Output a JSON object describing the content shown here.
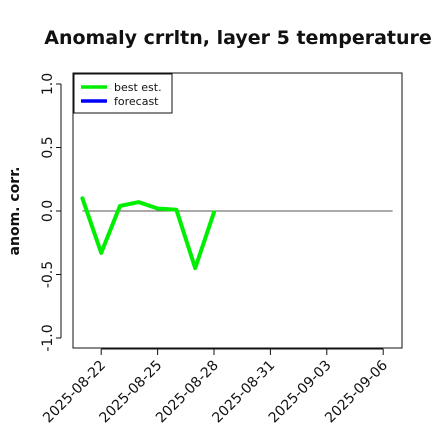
{
  "chart_data": {
    "type": "line",
    "title": "Anomaly crrltn, layer 5 temperature",
    "ylabel": "anom. corr.",
    "xlabel": "",
    "ylim": [
      -1.0,
      1.0
    ],
    "xlim": [
      "2025-08-20T12:00",
      "2025-09-07T00:00"
    ],
    "y_ticks": [
      "-1.0",
      "-0.5",
      "0.0",
      "0.5",
      "1.0"
    ],
    "x_ticks": [
      {
        "label": "2025-08-22",
        "value": "2025-08-22",
        "color": "#111111"
      },
      {
        "label": "2025-08-25",
        "value": "2025-08-25",
        "color": "#111111"
      },
      {
        "label": "2025-08-28",
        "value": "2025-08-28",
        "color": "#228B22"
      },
      {
        "label": "2025-08-31",
        "value": "2025-08-31",
        "color": "#111111"
      },
      {
        "label": "2025-09-03",
        "value": "2025-09-03",
        "color": "#111111"
      },
      {
        "label": "2025-09-06",
        "value": "2025-09-06",
        "color": "#111111"
      }
    ],
    "reference_line": {
      "y": 0.0,
      "x_from": "2025-08-21",
      "x_to": "2025-09-06T12:00",
      "color": "#555555"
    },
    "series": [
      {
        "name": "best est.",
        "color": "#00ee00",
        "x": [
          "2025-08-21",
          "2025-08-22",
          "2025-08-23",
          "2025-08-24",
          "2025-08-25",
          "2025-08-26",
          "2025-08-27",
          "2025-08-28"
        ],
        "y": [
          0.1,
          -0.33,
          0.04,
          0.07,
          0.02,
          0.01,
          -0.45,
          -0.01
        ]
      },
      {
        "name": "forecast",
        "color": "#0000ff",
        "x": [],
        "y": []
      }
    ],
    "legend": {
      "position": "top-left",
      "entries": [
        "best est.",
        "forecast"
      ]
    },
    "grid": false
  }
}
